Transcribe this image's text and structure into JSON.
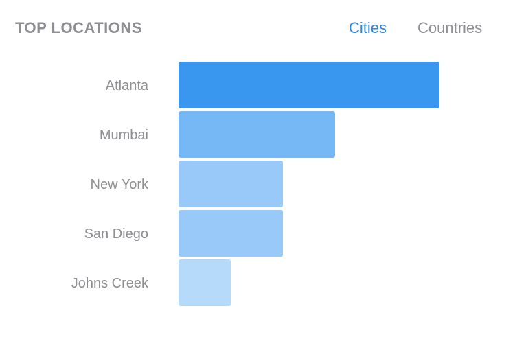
{
  "header": {
    "title": "TOP LOCATIONS"
  },
  "tabs": [
    {
      "label": "Cities",
      "active": true
    },
    {
      "label": "Countries",
      "active": false
    }
  ],
  "colors": {
    "accent": "#2f87d9",
    "muted_text": "#8e8e93",
    "bar_shades": [
      "#3a97ef",
      "#76b8f6",
      "#98c9f8",
      "#98c9f8",
      "#b6daf9"
    ]
  },
  "chart_data": {
    "type": "bar",
    "orientation": "horizontal",
    "categories": [
      "Atlanta",
      "Mumbai",
      "New York",
      "San Diego",
      "Johns Creek"
    ],
    "values": [
      5,
      3,
      2,
      2,
      1
    ],
    "xlim": [
      0,
      5
    ],
    "grid": false,
    "legend": "none"
  }
}
